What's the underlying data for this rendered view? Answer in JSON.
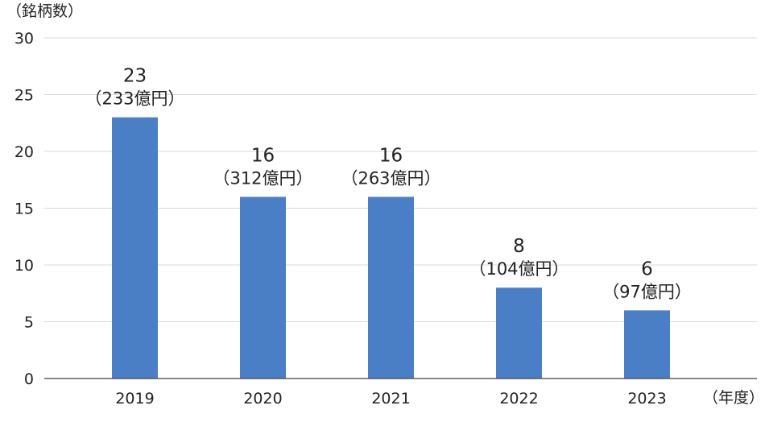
{
  "chart_data": {
    "type": "bar",
    "ylabel": "（銘柄数）",
    "xlabel": "（年度）",
    "categories": [
      "2019",
      "2020",
      "2021",
      "2022",
      "2023"
    ],
    "series": [
      {
        "values": [
          23,
          16,
          16,
          8,
          6
        ],
        "amounts": [
          "（233億円）",
          "（312億円）",
          "（263億円）",
          "（104億円）",
          "（97億円）"
        ]
      }
    ],
    "ylim": [
      0,
      30
    ],
    "yticks": [
      0,
      5,
      10,
      15,
      20,
      25,
      30
    ],
    "grid": true,
    "bar_color": "#4a7fc6",
    "grid_color": "#d9d9d9",
    "axis_color": "#404040"
  }
}
